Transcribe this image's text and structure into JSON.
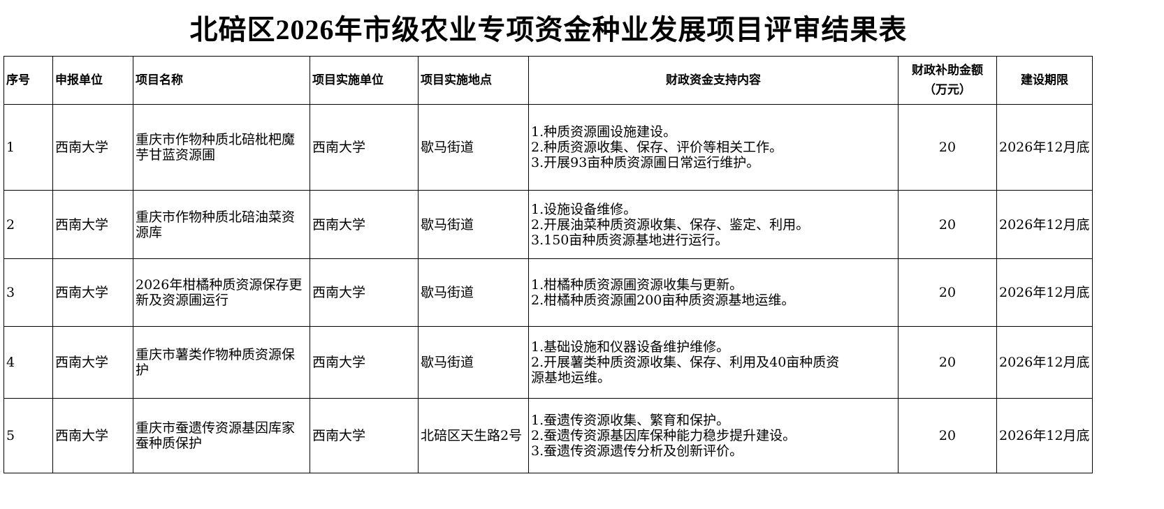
{
  "title": "北碚区2026年市级农业专项资金种业发展项目评审结果表",
  "headers": [
    "序号",
    "申报单位",
    "项目名称",
    "项目实施单位",
    "项目实施地点",
    "财政资金支持内容",
    "财政补助金额",
    "（万元）",
    "建设期限"
  ],
  "rows": [
    {
      "no": "1",
      "applicant": "西南大学",
      "name": "重庆市作物种质北碚枇杷魔芋甘蓝资源圃",
      "unit": "西南大学",
      "location": "歇马街道",
      "content": [
        "1.种质资源圃设施建设。",
        "2.种质资源收集、保存、评价等相关工作。",
        "3.开展93亩种质资源圃日常运行维护。"
      ],
      "amount": "20",
      "deadline": "2026年12月底"
    },
    {
      "no": "2",
      "applicant": "西南大学",
      "name": "重庆市作物种质北碚油菜资源库",
      "unit": "西南大学",
      "location": "歇马街道",
      "content": [
        "1.设施设备维修。",
        "2.开展油菜种质资源收集、保存、鉴定、利用。",
        "3.150亩种质资源基地进行运行。"
      ],
      "amount": "20",
      "deadline": "2026年12月底"
    },
    {
      "no": "3",
      "applicant": "西南大学",
      "name": "2026年柑橘种质资源保存更新及资源圃运行",
      "unit": "西南大学",
      "location": "歇马街道",
      "content": [
        "1.柑橘种质资源圃资源收集与更新。",
        "2.柑橘种质资源圃200亩种质资源基地运维。"
      ],
      "amount": "20",
      "deadline": "2026年12月底"
    },
    {
      "no": "4",
      "applicant": "西南大学",
      "name": "重庆市薯类作物种质资源保护",
      "unit": "西南大学",
      "location": "歇马街道",
      "content": [
        "1.基础设施和仪器设备维护维修。",
        "2.开展薯类种质资源收集、保存、利用及40亩种质资",
        "源基地运维。"
      ],
      "amount": "20",
      "deadline": "2026年12月底"
    },
    {
      "no": "5",
      "applicant": "西南大学",
      "name": "重庆市蚕遗传资源基因库家蚕种质保护",
      "unit": "西南大学",
      "location": "北碚区天生路2号",
      "content": [
        "1.蚕遗传资源收集、繁育和保护。",
        "2.蚕遗传资源基因库保种能力稳步提升建设。",
        "3.蚕遗传资源遗传分析及创新评价。"
      ],
      "amount": "20",
      "deadline": "2026年12月底"
    }
  ]
}
